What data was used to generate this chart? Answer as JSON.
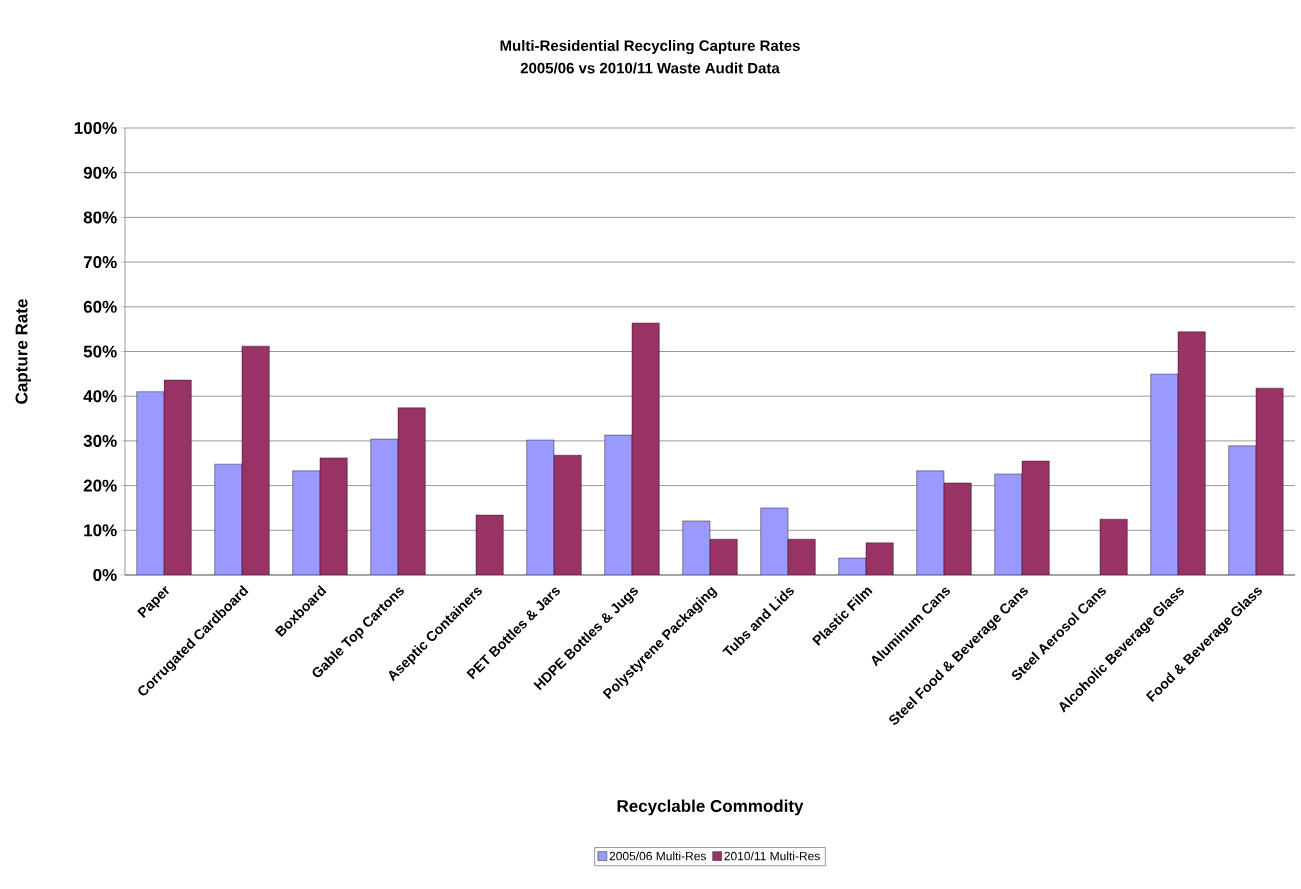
{
  "chart_data": {
    "type": "bar",
    "title": "Multi-Residential Recycling Capture Rates",
    "subtitle": "2005/06 vs 2010/11 Waste Audit Data",
    "xlabel": "Recyclable Commodity",
    "ylabel": "Capture Rate",
    "categories": [
      "Paper",
      "Corrugated Cardboard",
      "Boxboard",
      "Gable Top Cartons",
      "Aseptic Containers",
      "PET Bottles & Jars",
      "HDPE Bottles & Jugs",
      "Polystyrene Packaging",
      "Tubs and Lids",
      "Plastic Film",
      "Aluminum Cans",
      "Steel Food & Beverage Cans",
      "Steel Aerosol Cans",
      "Alcoholic Beverage Glass",
      "Food & Beverage Glass"
    ],
    "series": [
      {
        "name": "2005/06 Multi-Res",
        "color": "#9999ff",
        "values": [
          0.41,
          0.248,
          0.233,
          0.304,
          null,
          0.302,
          0.313,
          0.121,
          0.15,
          0.038,
          0.233,
          0.226,
          null,
          0.45,
          0.289
        ]
      },
      {
        "name": "2010/11 Multi-Res",
        "color": "#993366",
        "values": [
          0.436,
          0.512,
          0.262,
          0.374,
          0.134,
          0.268,
          0.564,
          0.08,
          0.08,
          0.072,
          0.206,
          0.255,
          0.125,
          0.544,
          0.418
        ]
      }
    ],
    "ylim": [
      0,
      1
    ],
    "yticks": [
      {
        "value": 0,
        "label": "0%"
      },
      {
        "value": 0.1,
        "label": "10%"
      },
      {
        "value": 0.2,
        "label": "20%"
      },
      {
        "value": 0.3,
        "label": "30%"
      },
      {
        "value": 0.4,
        "label": "40%"
      },
      {
        "value": 0.5,
        "label": "50%"
      },
      {
        "value": 0.6,
        "label": "60%"
      },
      {
        "value": 0.7,
        "label": "70%"
      },
      {
        "value": 0.8,
        "label": "80%"
      },
      {
        "value": 0.9,
        "label": "90%"
      },
      {
        "value": 1,
        "label": "100%"
      }
    ],
    "grid": "y",
    "legend": "bottom"
  }
}
